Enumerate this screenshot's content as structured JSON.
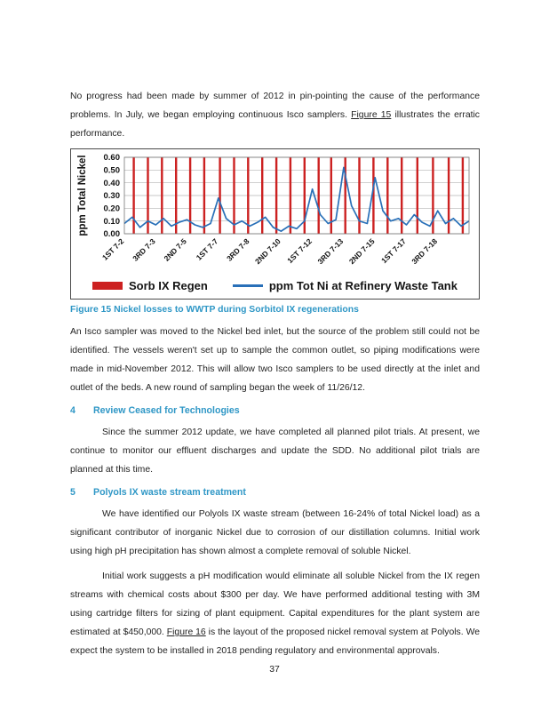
{
  "page": {
    "number": "37"
  },
  "colors": {
    "heading_blue": "#2f97c6",
    "chart_regen_red": "#cc2121",
    "chart_line_blue": "#2970b8"
  },
  "paragraphs": {
    "intro_1": "No progress had been made by summer of 2012 in pin-pointing the cause of the performance problems. In July, we began employing continuous Isco samplers. ",
    "intro_link": "Figure 15",
    "intro_2": " illustrates the erratic performance.",
    "after_figure": "An Isco sampler was moved to the Nickel bed inlet, but the source of the problem still could not be identified. The vessels weren't set up to sample the common outlet, so piping modifications were made in mid-November 2012. This will allow two Isco samplers to be used directly at the inlet and outlet of the beds. A new round of sampling began the week of 11/26/12.",
    "section4_body": "Since the summer 2012 update, we have completed all planned pilot trials. At present, we continue to monitor our effluent discharges and update the SDD. No additional pilot trials are planned at this time.",
    "section5_body1": "We have identified our Polyols IX waste stream (between 16-24% of total Nickel load) as a significant contributor of inorganic Nickel due to corrosion of our distillation columns. Initial work using high pH precipitation has shown almost a complete removal of soluble Nickel.",
    "section5_body2_1": "Initial work suggests a pH modification would eliminate all soluble Nickel from the IX regen streams with chemical costs about $300 per day. We have performed additional testing with 3M using cartridge filters for sizing of plant equipment. Capital expenditures for the plant system are estimated at $450,000. ",
    "section5_link": "Figure 16",
    "section5_body2_2": " is the layout of the proposed nickel removal system at Polyols. We expect the system to be installed in 2018 pending regulatory and environmental approvals."
  },
  "figure_caption": "Figure 15  Nickel losses to WWTP during Sorbitol IX regenerations",
  "headings": {
    "section4_num": "4",
    "section4_title": "Review Ceased for Technologies",
    "section5_num": "5",
    "section5_title": "Polyols IX waste stream treatment"
  },
  "chart_data": {
    "type": "line",
    "title": "",
    "xlabel": "",
    "ylabel": "ppm Total Nickel",
    "ylim": [
      0,
      0.6
    ],
    "ytick_step": 0.1,
    "grid": true,
    "legend_position": "bottom",
    "categories": [
      "1ST 7-2",
      "3RD 7-3",
      "2ND 7-5",
      "1ST 7-7",
      "3RD 7-8",
      "2ND 7-10",
      "1ST 7-12",
      "3RD 7-13",
      "2ND 7-15",
      "1ST 7-17",
      "3RD 7-18"
    ],
    "tick_positions": [
      0,
      4,
      8,
      12,
      16,
      20,
      24,
      28,
      32,
      36,
      40
    ],
    "series": [
      {
        "name": "ppm Tot Ni at Refinery Waste Tank",
        "type": "line",
        "color": "#2970b8",
        "values": [
          0.08,
          0.13,
          0.05,
          0.1,
          0.07,
          0.12,
          0.06,
          0.09,
          0.11,
          0.07,
          0.05,
          0.08,
          0.28,
          0.12,
          0.07,
          0.1,
          0.06,
          0.09,
          0.13,
          0.05,
          0.02,
          0.06,
          0.04,
          0.1,
          0.35,
          0.15,
          0.08,
          0.11,
          0.52,
          0.22,
          0.1,
          0.08,
          0.44,
          0.18,
          0.1,
          0.12,
          0.07,
          0.15,
          0.09,
          0.06,
          0.18,
          0.08,
          0.12,
          0.06,
          0.1
        ]
      }
    ],
    "events": {
      "name": "Sorb IX Regen",
      "type": "vertical-bars",
      "color": "#cc2121",
      "positions": [
        1.2,
        3.0,
        4.8,
        6.6,
        8.4,
        10.2,
        12.2,
        14.0,
        15.8,
        17.6,
        19.4,
        21.2,
        23.0,
        24.8,
        26.4,
        28.2,
        30.0,
        31.8,
        33.6,
        35.4,
        37.4,
        39.4,
        41.4,
        43.2
      ]
    }
  }
}
